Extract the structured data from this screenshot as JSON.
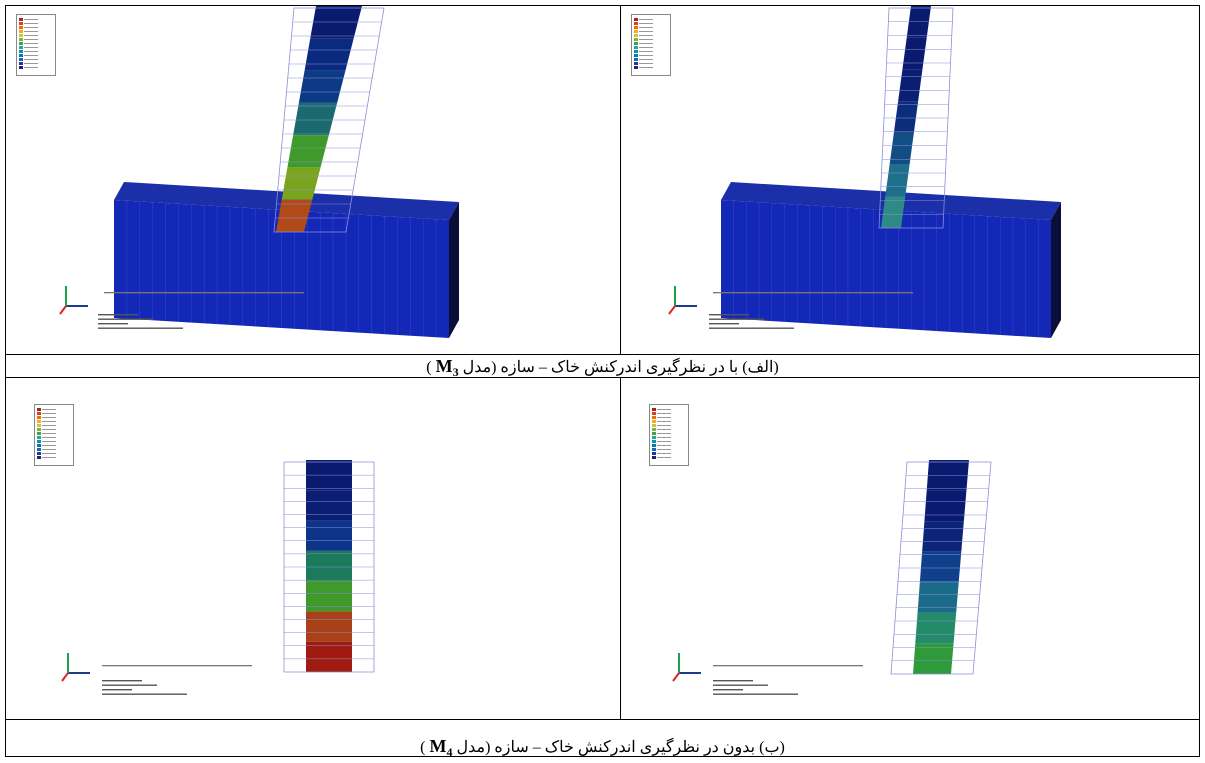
{
  "captions": {
    "a_text": "(الف) با در نظرگیری اندرکنش خاک – سازه (مدل ",
    "a_model": "M",
    "a_sub": "3",
    "a_close": " )",
    "b_text": "(ب) بدون در نظرگیری اندرکنش خاک – سازه (مدل ",
    "b_model": "M",
    "b_sub": "4",
    "b_close": " )"
  },
  "panels": [
    {
      "id": "a-left",
      "has_soil": true,
      "column_colors": [
        "#0a1a6e",
        "#0a2a80",
        "#0d3a86",
        "#1a6a70",
        "#3f9a2a",
        "#7aa41e",
        "#b04a18"
      ]
    },
    {
      "id": "a-right",
      "has_soil": true,
      "column_colors": [
        "#0a1a6e",
        "#0a1a6e",
        "#0a1f74",
        "#0c2d7c",
        "#134d86",
        "#1d6f8a",
        "#2f8a86"
      ]
    },
    {
      "id": "b-left",
      "has_soil": false,
      "column_colors": [
        "#0a1a6e",
        "#0a1f74",
        "#0d3488",
        "#1a7a5a",
        "#3f9a2a",
        "#a84018",
        "#a01a10"
      ]
    },
    {
      "id": "b-right",
      "has_soil": false,
      "column_colors": [
        "#0a1a6e",
        "#0a1a6e",
        "#0c2478",
        "#10408a",
        "#1a6a8a",
        "#238a6a",
        "#2f9a3a"
      ]
    }
  ],
  "legend_colors": [
    "#b71c1c",
    "#d84315",
    "#ef6c00",
    "#f9a825",
    "#c0ca33",
    "#7cb342",
    "#43a047",
    "#26a69a",
    "#0097a7",
    "#0277bd",
    "#1565c0",
    "#283593",
    "#1a237e"
  ],
  "axis_colors": {
    "x": "#1e3a8a",
    "y": "#16a34a",
    "z": "#dc2626"
  }
}
